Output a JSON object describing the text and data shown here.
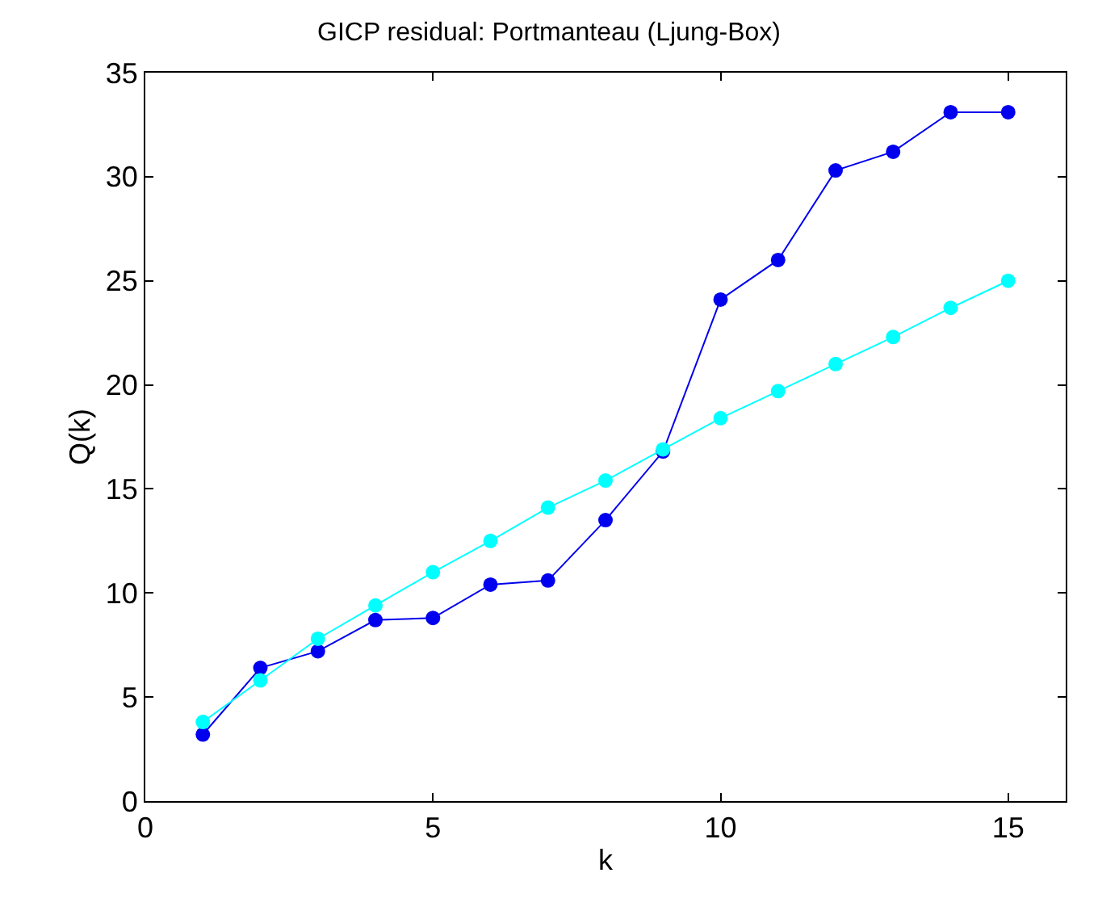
{
  "chart_data": {
    "type": "line",
    "title": "GICP residual: Portmanteau (Ljung-Box)",
    "xlabel": "k",
    "ylabel": "Q(k)",
    "x": [
      1,
      2,
      3,
      4,
      5,
      6,
      7,
      8,
      9,
      10,
      11,
      12,
      13,
      14,
      15
    ],
    "series": [
      {
        "color": "#0000ee",
        "values": [
          3.2,
          6.4,
          7.2,
          8.7,
          8.8,
          10.4,
          10.6,
          13.5,
          16.8,
          24.1,
          26.0,
          30.3,
          31.2,
          33.1,
          33.1
        ]
      },
      {
        "color": "#00ffff",
        "values": [
          3.8,
          5.8,
          7.8,
          9.4,
          11.0,
          12.5,
          14.1,
          15.4,
          16.9,
          18.4,
          19.7,
          21.0,
          22.3,
          23.7,
          25.0
        ]
      }
    ],
    "xlim": [
      0,
      16
    ],
    "xticks": [
      0,
      5,
      10,
      15
    ],
    "ylim": [
      0,
      35
    ],
    "yticks": [
      0,
      5,
      10,
      15,
      20,
      25,
      30,
      35
    ],
    "marker": "circle",
    "line_style": "solid"
  }
}
